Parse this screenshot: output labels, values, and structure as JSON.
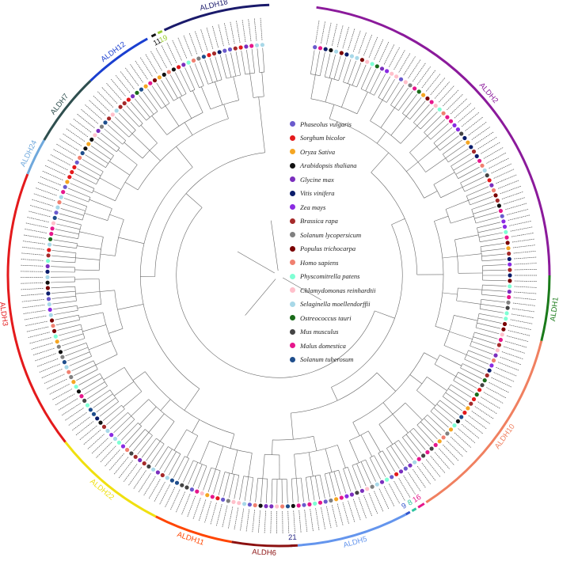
{
  "figure": {
    "title": ""
  },
  "legend": [
    {
      "species": "Phaseolus vulgaris",
      "color": "#6a5acd"
    },
    {
      "species": "Sorghum bicolor",
      "color": "#e41a1c"
    },
    {
      "species": "Oryza Sativa",
      "color": "#f5a623"
    },
    {
      "species": "Arabidopsis thaliana",
      "color": "#111111"
    },
    {
      "species": "Glycine max",
      "color": "#7b2fbe"
    },
    {
      "species": "Vitis vinifera",
      "color": "#0b1d6b"
    },
    {
      "species": "Zea mays",
      "color": "#8a2be2"
    },
    {
      "species": "Brassica rapa",
      "color": "#a52a2a"
    },
    {
      "species": "Solanum lycopersicum",
      "color": "#808080"
    },
    {
      "species": "Populus trichocarpa",
      "color": "#7a0000"
    },
    {
      "species": "Homo sapiens",
      "color": "#f08070"
    },
    {
      "species": "Physcomitrella patens",
      "color": "#7fffd4"
    },
    {
      "species": "Chlamydomonas reinhardtii",
      "color": "#ffc0cb"
    },
    {
      "species": "Selaginella moellendorffii",
      "color": "#a8d8e8"
    },
    {
      "species": "Ostreococcus tauri",
      "color": "#1a6b1a"
    },
    {
      "species": "Mus musculus",
      "color": "#444444"
    },
    {
      "species": "Malus domestica",
      "color": "#e6178c"
    },
    {
      "species": "Solanum tuberosum",
      "color": "#1f4e8c"
    }
  ],
  "clades": [
    {
      "label": "ALDH2",
      "color": "#8b1a9b"
    },
    {
      "label": "ALDH1",
      "color": "#1a7a1a"
    },
    {
      "label": "ALDH10",
      "color": "#f08060"
    },
    {
      "label": "16",
      "color": "#e6178c"
    },
    {
      "label": "8",
      "color": "#2ec4a0"
    },
    {
      "label": "9",
      "color": "#3355cc"
    },
    {
      "label": "ALDH5",
      "color": "#6495ed"
    },
    {
      "label": "21",
      "color": "#1a1a7a"
    },
    {
      "label": "ALDH6",
      "color": "#8b1010"
    },
    {
      "label": "ALDH11",
      "color": "#ff4500"
    },
    {
      "label": "ALDH22",
      "color": "#f0e010"
    },
    {
      "label": "ALDH3",
      "color": "#e41a1c"
    },
    {
      "label": "ALDH24",
      "color": "#6fa8dc"
    },
    {
      "label": "ALDH7",
      "color": "#2f4f4f"
    },
    {
      "label": "ALDH12",
      "color": "#1a3fd0"
    },
    {
      "label": "11",
      "color": "#111111"
    },
    {
      "label": "19",
      "color": "#9acd32"
    },
    {
      "label": "ALDH18",
      "color": "#1a1a6b"
    }
  ]
}
